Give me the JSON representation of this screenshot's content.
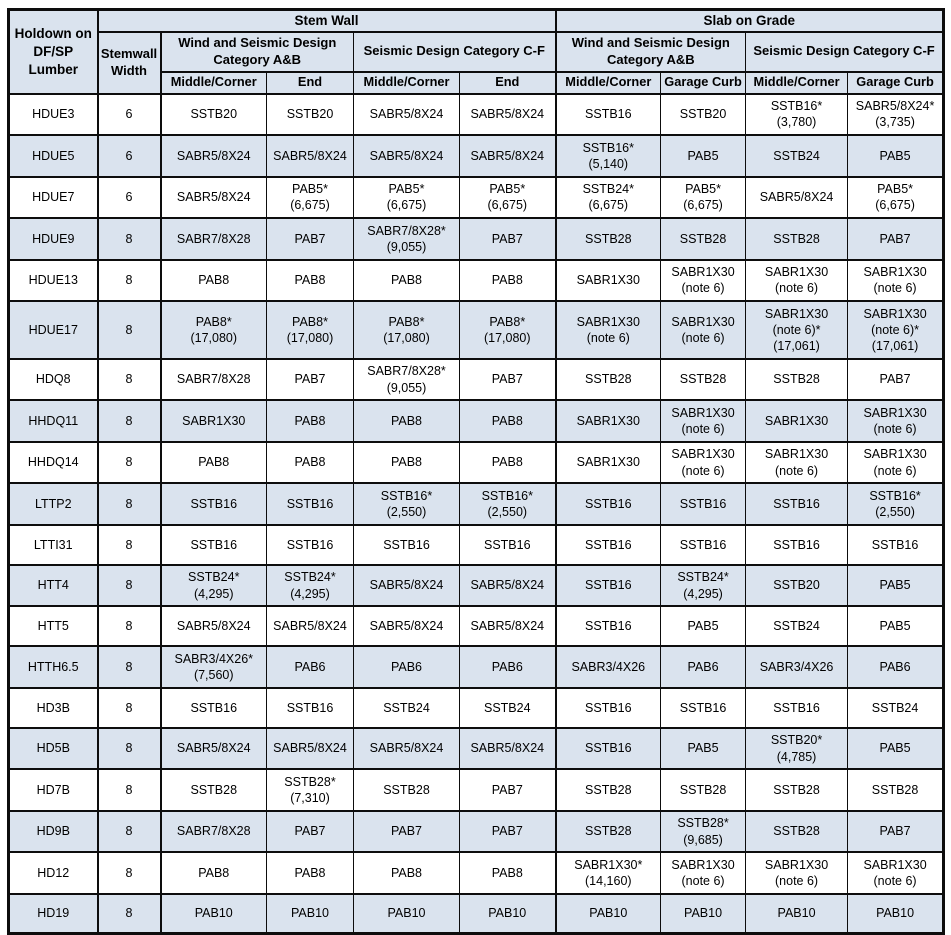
{
  "colors": {
    "shaded_cell": "#dae3ee",
    "row_white": "#ffffff",
    "border": "#0d0d0d",
    "text": "#000000"
  },
  "header": {
    "holdown": "Holdown on\nDF/SP\nLumber",
    "stemwall_width": "Stemwall\nWidth",
    "stem_wall": "Stem Wall",
    "slab_on_grade": "Slab on Grade",
    "wind_ab": "Wind and Seismic Design\nCategory A&B",
    "seismic_cf": "Seismic Design Category C-F",
    "middle_corner": "Middle/Corner",
    "end": "End",
    "garage_curb": "Garage Curb"
  },
  "chart_data": {
    "type": "table",
    "title": "Holdown anchor selection table for DF/SP lumber",
    "columns": [
      "Holdown on DF/SP Lumber",
      "Stemwall Width",
      "Stem Wall | Wind and Seismic Design Category A&B | Middle/Corner",
      "Stem Wall | Wind and Seismic Design Category A&B | End",
      "Stem Wall | Seismic Design Category C-F | Middle/Corner",
      "Stem Wall | Seismic Design Category C-F | End",
      "Slab on Grade | Wind and Seismic Design Category A&B | Middle/Corner",
      "Slab on Grade | Wind and Seismic Design Category A&B | Garage Curb",
      "Slab on Grade | Seismic Design Category C-F | Middle/Corner",
      "Slab on Grade | Seismic Design Category C-F | Garage Curb"
    ],
    "rows": [
      {
        "holdown": "HDUE3",
        "width": "6",
        "cells": [
          [
            "SSTB20"
          ],
          [
            "SSTB20"
          ],
          [
            "SABR5/8X24"
          ],
          [
            "SABR5/8X24"
          ],
          [
            "SSTB16"
          ],
          [
            "SSTB20"
          ],
          [
            "SSTB16*",
            "(3,780)"
          ],
          [
            "SABR5/8X24*",
            "(3,735)"
          ]
        ]
      },
      {
        "holdown": "HDUE5",
        "width": "6",
        "cells": [
          [
            "SABR5/8X24"
          ],
          [
            "SABR5/8X24"
          ],
          [
            "SABR5/8X24"
          ],
          [
            "SABR5/8X24"
          ],
          [
            "SSTB16*",
            "(5,140)"
          ],
          [
            "PAB5"
          ],
          [
            "SSTB24"
          ],
          [
            "PAB5"
          ]
        ]
      },
      {
        "holdown": "HDUE7",
        "width": "6",
        "cells": [
          [
            "SABR5/8X24"
          ],
          [
            "PAB5*",
            "(6,675)"
          ],
          [
            "PAB5*",
            "(6,675)"
          ],
          [
            "PAB5*",
            "(6,675)"
          ],
          [
            "SSTB24*",
            "(6,675)"
          ],
          [
            "PAB5*",
            "(6,675)"
          ],
          [
            "SABR5/8X24"
          ],
          [
            "PAB5*",
            "(6,675)"
          ]
        ]
      },
      {
        "holdown": "HDUE9",
        "width": "8",
        "cells": [
          [
            "SABR7/8X28"
          ],
          [
            "PAB7"
          ],
          [
            "SABR7/8X28*",
            "(9,055)"
          ],
          [
            "PAB7"
          ],
          [
            "SSTB28"
          ],
          [
            "SSTB28"
          ],
          [
            "SSTB28"
          ],
          [
            "PAB7"
          ]
        ]
      },
      {
        "holdown": "HDUE13",
        "width": "8",
        "cells": [
          [
            "PAB8"
          ],
          [
            "PAB8"
          ],
          [
            "PAB8"
          ],
          [
            "PAB8"
          ],
          [
            "SABR1X30"
          ],
          [
            "SABR1X30",
            "(note 6)"
          ],
          [
            "SABR1X30",
            "(note 6)"
          ],
          [
            "SABR1X30",
            "(note 6)"
          ]
        ]
      },
      {
        "holdown": "HDUE17",
        "width": "8",
        "cells": [
          [
            "PAB8*",
            "(17,080)"
          ],
          [
            "PAB8*",
            "(17,080)"
          ],
          [
            "PAB8*",
            "(17,080)"
          ],
          [
            "PAB8*",
            "(17,080)"
          ],
          [
            "SABR1X30",
            "(note 6)"
          ],
          [
            "SABR1X30",
            "(note 6)"
          ],
          [
            "SABR1X30",
            "(note 6)*",
            "(17,061)"
          ],
          [
            "SABR1X30",
            "(note 6)*",
            "(17,061)"
          ]
        ]
      },
      {
        "holdown": "HDQ8",
        "width": "8",
        "cells": [
          [
            "SABR7/8X28"
          ],
          [
            "PAB7"
          ],
          [
            "SABR7/8X28*",
            "(9,055)"
          ],
          [
            "PAB7"
          ],
          [
            "SSTB28"
          ],
          [
            "SSTB28"
          ],
          [
            "SSTB28"
          ],
          [
            "PAB7"
          ]
        ]
      },
      {
        "holdown": "HHDQ11",
        "width": "8",
        "cells": [
          [
            "SABR1X30"
          ],
          [
            "PAB8"
          ],
          [
            "PAB8"
          ],
          [
            "PAB8"
          ],
          [
            "SABR1X30"
          ],
          [
            "SABR1X30",
            "(note 6)"
          ],
          [
            "SABR1X30"
          ],
          [
            "SABR1X30",
            "(note 6)"
          ]
        ]
      },
      {
        "holdown": "HHDQ14",
        "width": "8",
        "cells": [
          [
            "PAB8"
          ],
          [
            "PAB8"
          ],
          [
            "PAB8"
          ],
          [
            "PAB8"
          ],
          [
            "SABR1X30"
          ],
          [
            "SABR1X30",
            "(note 6)"
          ],
          [
            "SABR1X30",
            "(note 6)"
          ],
          [
            "SABR1X30",
            "(note 6)"
          ]
        ]
      },
      {
        "holdown": "LTTP2",
        "width": "8",
        "cells": [
          [
            "SSTB16"
          ],
          [
            "SSTB16"
          ],
          [
            "SSTB16*",
            "(2,550)"
          ],
          [
            "SSTB16*",
            "(2,550)"
          ],
          [
            "SSTB16"
          ],
          [
            "SSTB16"
          ],
          [
            "SSTB16"
          ],
          [
            "SSTB16*",
            "(2,550)"
          ]
        ]
      },
      {
        "holdown": "LTTI31",
        "width": "8",
        "cells": [
          [
            "SSTB16"
          ],
          [
            "SSTB16"
          ],
          [
            "SSTB16"
          ],
          [
            "SSTB16"
          ],
          [
            "SSTB16"
          ],
          [
            "SSTB16"
          ],
          [
            "SSTB16"
          ],
          [
            "SSTB16"
          ]
        ]
      },
      {
        "holdown": "HTT4",
        "width": "8",
        "cells": [
          [
            "SSTB24*",
            "(4,295)"
          ],
          [
            "SSTB24*",
            "(4,295)"
          ],
          [
            "SABR5/8X24"
          ],
          [
            "SABR5/8X24"
          ],
          [
            "SSTB16"
          ],
          [
            "SSTB24*",
            "(4,295)"
          ],
          [
            "SSTB20"
          ],
          [
            "PAB5"
          ]
        ]
      },
      {
        "holdown": "HTT5",
        "width": "8",
        "cells": [
          [
            "SABR5/8X24"
          ],
          [
            "SABR5/8X24"
          ],
          [
            "SABR5/8X24"
          ],
          [
            "SABR5/8X24"
          ],
          [
            "SSTB16"
          ],
          [
            "PAB5"
          ],
          [
            "SSTB24"
          ],
          [
            "PAB5"
          ]
        ]
      },
      {
        "holdown": "HTTH6.5",
        "width": "8",
        "cells": [
          [
            "SABR3/4X26*",
            "(7,560)"
          ],
          [
            "PAB6"
          ],
          [
            "PAB6"
          ],
          [
            "PAB6"
          ],
          [
            "SABR3/4X26"
          ],
          [
            "PAB6"
          ],
          [
            "SABR3/4X26"
          ],
          [
            "PAB6"
          ]
        ]
      },
      {
        "holdown": "HD3B",
        "width": "8",
        "cells": [
          [
            "SSTB16"
          ],
          [
            "SSTB16"
          ],
          [
            "SSTB24"
          ],
          [
            "SSTB24"
          ],
          [
            "SSTB16"
          ],
          [
            "SSTB16"
          ],
          [
            "SSTB16"
          ],
          [
            "SSTB24"
          ]
        ]
      },
      {
        "holdown": "HD5B",
        "width": "8",
        "cells": [
          [
            "SABR5/8X24"
          ],
          [
            "SABR5/8X24"
          ],
          [
            "SABR5/8X24"
          ],
          [
            "SABR5/8X24"
          ],
          [
            "SSTB16"
          ],
          [
            "PAB5"
          ],
          [
            "SSTB20*",
            "(4,785)"
          ],
          [
            "PAB5"
          ]
        ]
      },
      {
        "holdown": "HD7B",
        "width": "8",
        "cells": [
          [
            "SSTB28"
          ],
          [
            "SSTB28*",
            "(7,310)"
          ],
          [
            "SSTB28"
          ],
          [
            "PAB7"
          ],
          [
            "SSTB28"
          ],
          [
            "SSTB28"
          ],
          [
            "SSTB28"
          ],
          [
            "SSTB28"
          ]
        ]
      },
      {
        "holdown": "HD9B",
        "width": "8",
        "cells": [
          [
            "SABR7/8X28"
          ],
          [
            "PAB7"
          ],
          [
            "PAB7"
          ],
          [
            "PAB7"
          ],
          [
            "SSTB28"
          ],
          [
            "SSTB28*",
            "(9,685)"
          ],
          [
            "SSTB28"
          ],
          [
            "PAB7"
          ]
        ]
      },
      {
        "holdown": "HD12",
        "width": "8",
        "cells": [
          [
            "PAB8"
          ],
          [
            "PAB8"
          ],
          [
            "PAB8"
          ],
          [
            "PAB8"
          ],
          [
            "SABR1X30*",
            "(14,160)"
          ],
          [
            "SABR1X30",
            "(note 6)"
          ],
          [
            "SABR1X30",
            "(note 6)"
          ],
          [
            "SABR1X30",
            "(note 6)"
          ]
        ]
      },
      {
        "holdown": "HD19",
        "width": "8",
        "cells": [
          [
            "PAB10"
          ],
          [
            "PAB10"
          ],
          [
            "PAB10"
          ],
          [
            "PAB10"
          ],
          [
            "PAB10"
          ],
          [
            "PAB10"
          ],
          [
            "PAB10"
          ],
          [
            "PAB10"
          ]
        ]
      }
    ]
  }
}
